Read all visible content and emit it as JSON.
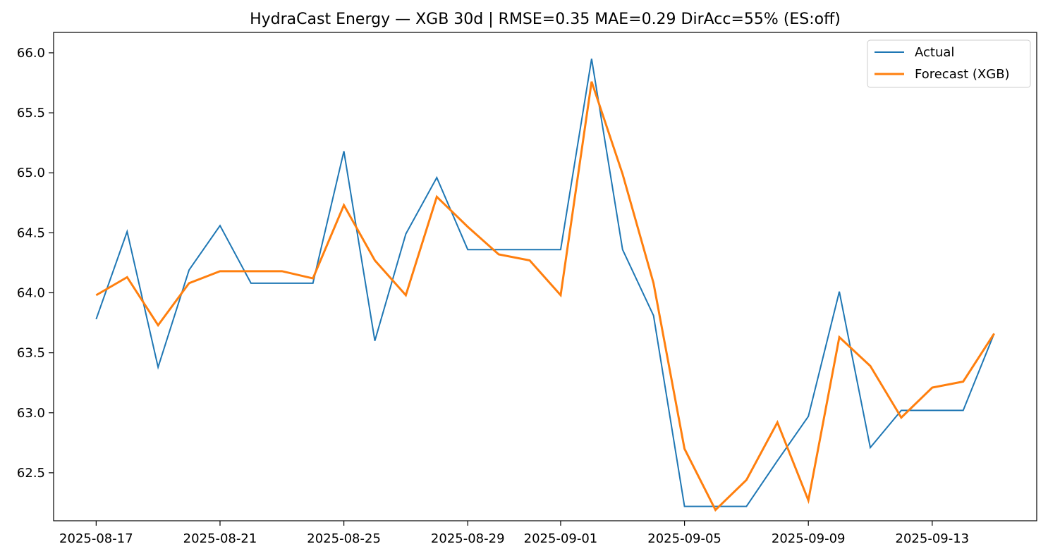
{
  "chart_data": {
    "type": "line",
    "title": "HydraCast Energy — XGB 30d  |  RMSE=0.35  MAE=0.29  DirAcc=55%  (ES:off)",
    "xlabel": "",
    "ylabel": "",
    "x": [
      "2025-08-17",
      "2025-08-18",
      "2025-08-19",
      "2025-08-20",
      "2025-08-21",
      "2025-08-22",
      "2025-08-23",
      "2025-08-24",
      "2025-08-25",
      "2025-08-26",
      "2025-08-27",
      "2025-08-28",
      "2025-08-29",
      "2025-08-30",
      "2025-08-31",
      "2025-09-01",
      "2025-09-02",
      "2025-09-03",
      "2025-09-04",
      "2025-09-05",
      "2025-09-06",
      "2025-09-07",
      "2025-09-08",
      "2025-09-09",
      "2025-09-10",
      "2025-09-11",
      "2025-09-12",
      "2025-09-13",
      "2025-09-14",
      "2025-09-15"
    ],
    "x_ticks": [
      "2025-08-17",
      "2025-08-21",
      "2025-08-25",
      "2025-08-29",
      "2025-09-01",
      "2025-09-05",
      "2025-09-09",
      "2025-09-13"
    ],
    "y_ticks": [
      "62.5",
      "63.0",
      "63.5",
      "64.0",
      "64.5",
      "65.0",
      "65.5",
      "66.0"
    ],
    "ylim": [
      62.1,
      66.17
    ],
    "grid": false,
    "legend_position": "upper right",
    "series": [
      {
        "name": "Actual",
        "color": "#1f77b4",
        "values": [
          63.78,
          64.51,
          63.38,
          64.19,
          64.56,
          64.08,
          64.08,
          64.08,
          65.18,
          63.6,
          64.49,
          64.96,
          64.36,
          64.36,
          64.36,
          64.36,
          65.95,
          64.36,
          63.81,
          62.22,
          62.22,
          62.22,
          62.6,
          62.97,
          64.01,
          62.71,
          63.02,
          63.02,
          63.02,
          63.66
        ]
      },
      {
        "name": "Forecast (XGB)",
        "color": "#ff7f0e",
        "values": [
          63.98,
          64.13,
          63.73,
          64.08,
          64.18,
          64.18,
          64.18,
          64.12,
          64.73,
          64.27,
          63.98,
          64.8,
          64.55,
          64.32,
          64.27,
          63.98,
          65.76,
          64.99,
          64.08,
          62.7,
          62.19,
          62.44,
          62.92,
          62.27,
          63.63,
          63.39,
          62.96,
          63.21,
          63.26,
          63.66
        ]
      }
    ]
  }
}
